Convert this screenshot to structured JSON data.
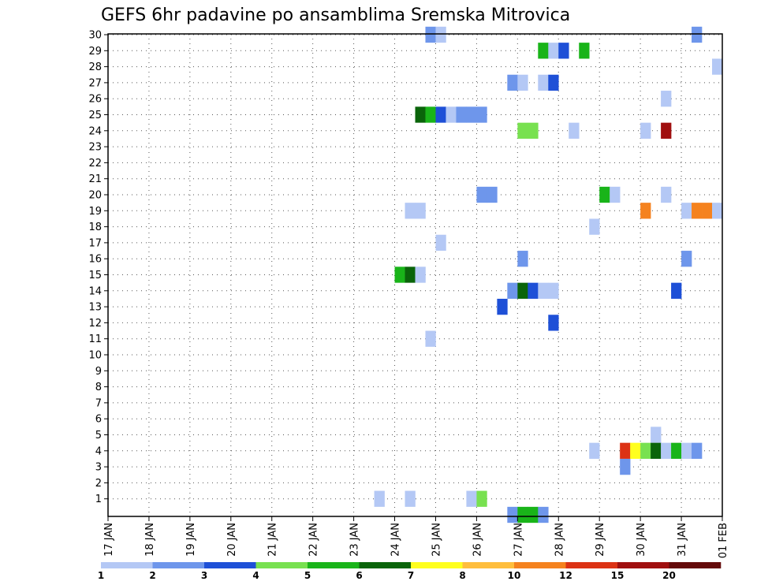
{
  "chart_data": {
    "type": "heatmap",
    "title": "GEFS 6hr padavine po ansamblima Sremska Mitrovica",
    "x_tick_labels": [
      "17 JAN",
      "18 JAN",
      "19 JAN",
      "20 JAN",
      "21 JAN",
      "22 JAN",
      "23 JAN",
      "24 JAN",
      "25 JAN",
      "26 JAN",
      "27 JAN",
      "28 JAN",
      "29 JAN",
      "30 JAN",
      "31 JAN",
      "01 FEB"
    ],
    "x_unit": "6-hour step (day index = 17 JAN + step/4)",
    "y_tick_labels": [
      "1",
      "2",
      "3",
      "4",
      "5",
      "6",
      "7",
      "8",
      "9",
      "10",
      "11",
      "12",
      "13",
      "14",
      "15",
      "16",
      "17",
      "18",
      "19",
      "20",
      "21",
      "22",
      "23",
      "24",
      "25",
      "26",
      "27",
      "28",
      "29",
      "30"
    ],
    "grid": true,
    "color_levels": [
      1,
      2,
      3,
      4,
      5,
      6,
      7,
      8,
      10,
      12,
      15,
      20
    ],
    "colors": [
      "#b4c8f5",
      "#6e96eb",
      "#1e50d7",
      "#78e150",
      "#19b419",
      "#0a640a",
      "#ffff1e",
      "#ffbe3c",
      "#f5821e",
      "#dc3214",
      "#a00f0f",
      "#640a0a"
    ],
    "cells": [
      {
        "member": 30,
        "step": 31,
        "level": 1
      },
      {
        "member": 30,
        "step": 32,
        "level": 0
      },
      {
        "member": 30,
        "step": 57,
        "level": 1
      },
      {
        "member": 29,
        "step": 42,
        "level": 4
      },
      {
        "member": 29,
        "step": 43,
        "level": 0
      },
      {
        "member": 29,
        "step": 44,
        "level": 2
      },
      {
        "member": 29,
        "step": 46,
        "level": 4
      },
      {
        "member": 28,
        "step": 59,
        "level": 0
      },
      {
        "member": 27,
        "step": 39,
        "level": 1
      },
      {
        "member": 27,
        "step": 40,
        "level": 0
      },
      {
        "member": 27,
        "step": 42,
        "level": 0
      },
      {
        "member": 27,
        "step": 43,
        "level": 2
      },
      {
        "member": 26,
        "step": 54,
        "level": 0
      },
      {
        "member": 25,
        "step": 30,
        "level": 5
      },
      {
        "member": 25,
        "step": 31,
        "level": 4
      },
      {
        "member": 25,
        "step": 32,
        "level": 2
      },
      {
        "member": 25,
        "step": 33,
        "level": 0
      },
      {
        "member": 25,
        "step": 34,
        "level": 1
      },
      {
        "member": 25,
        "step": 35,
        "level": 1
      },
      {
        "member": 25,
        "step": 36,
        "level": 1
      },
      {
        "member": 24,
        "step": 40,
        "level": 3
      },
      {
        "member": 24,
        "step": 41,
        "level": 3
      },
      {
        "member": 24,
        "step": 45,
        "level": 0
      },
      {
        "member": 24,
        "step": 52,
        "level": 0
      },
      {
        "member": 24,
        "step": 54,
        "level": 10
      },
      {
        "member": 20,
        "step": 36,
        "level": 1
      },
      {
        "member": 20,
        "step": 37,
        "level": 1
      },
      {
        "member": 20,
        "step": 48,
        "level": 4
      },
      {
        "member": 20,
        "step": 49,
        "level": 0
      },
      {
        "member": 20,
        "step": 54,
        "level": 0
      },
      {
        "member": 19,
        "step": 29,
        "level": 0
      },
      {
        "member": 19,
        "step": 30,
        "level": 0
      },
      {
        "member": 19,
        "step": 52,
        "level": 8
      },
      {
        "member": 19,
        "step": 56,
        "level": 0
      },
      {
        "member": 19,
        "step": 57,
        "level": 8
      },
      {
        "member": 19,
        "step": 58,
        "level": 8
      },
      {
        "member": 19,
        "step": 59,
        "level": 0
      },
      {
        "member": 18,
        "step": 47,
        "level": 0
      },
      {
        "member": 17,
        "step": 32,
        "level": 0
      },
      {
        "member": 16,
        "step": 40,
        "level": 1
      },
      {
        "member": 16,
        "step": 56,
        "level": 1
      },
      {
        "member": 15,
        "step": 28,
        "level": 4
      },
      {
        "member": 15,
        "step": 29,
        "level": 5
      },
      {
        "member": 15,
        "step": 30,
        "level": 0
      },
      {
        "member": 14,
        "step": 39,
        "level": 1
      },
      {
        "member": 14,
        "step": 40,
        "level": 5
      },
      {
        "member": 14,
        "step": 41,
        "level": 2
      },
      {
        "member": 14,
        "step": 42,
        "level": 0
      },
      {
        "member": 14,
        "step": 43,
        "level": 0
      },
      {
        "member": 14,
        "step": 55,
        "level": 2
      },
      {
        "member": 13,
        "step": 38,
        "level": 2
      },
      {
        "member": 12,
        "step": 43,
        "level": 2
      },
      {
        "member": 11,
        "step": 31,
        "level": 0
      },
      {
        "member": 5,
        "step": 53,
        "level": 0
      },
      {
        "member": 4,
        "step": 47,
        "level": 0
      },
      {
        "member": 4,
        "step": 50,
        "level": 9
      },
      {
        "member": 4,
        "step": 51,
        "level": 6
      },
      {
        "member": 4,
        "step": 52,
        "level": 3
      },
      {
        "member": 4,
        "step": 53,
        "level": 5
      },
      {
        "member": 4,
        "step": 54,
        "level": 0
      },
      {
        "member": 4,
        "step": 55,
        "level": 4
      },
      {
        "member": 4,
        "step": 56,
        "level": 0
      },
      {
        "member": 4,
        "step": 57,
        "level": 1
      },
      {
        "member": 3,
        "step": 50,
        "level": 1
      },
      {
        "member": 1,
        "step": 26,
        "level": 0
      },
      {
        "member": 1,
        "step": 29,
        "level": 0
      },
      {
        "member": 1,
        "step": 35,
        "level": 0
      },
      {
        "member": 1,
        "step": 36,
        "level": 3
      },
      {
        "member": 0,
        "step": 39,
        "level": 1
      },
      {
        "member": 0,
        "step": 40,
        "level": 4
      },
      {
        "member": 0,
        "step": 41,
        "level": 4
      },
      {
        "member": 0,
        "step": 42,
        "level": 1
      }
    ]
  }
}
